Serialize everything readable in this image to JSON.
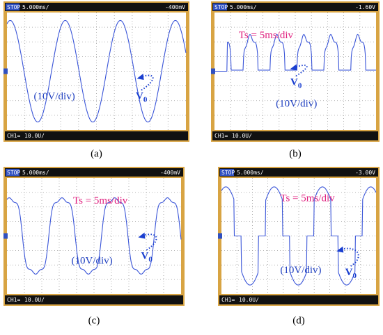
{
  "panels": [
    {
      "label": "(a)",
      "status": "STOP",
      "timebase": "5.000ms/",
      "trigger": "-400mV",
      "channel": "CH1=",
      "scale": "10.0U/",
      "voltscale": "(10V/div)",
      "output": "V",
      "output_sub": "0"
    },
    {
      "label": "(b)",
      "status": "STOP",
      "timebase": "5.000ms/",
      "trigger": "-1.60V",
      "channel": "CH1=",
      "scale": "10.0U/",
      "timescale": "Ts = 5ms/div",
      "voltscale": "(10V/div)",
      "output": "V",
      "output_sub": "0"
    },
    {
      "label": "(c)",
      "status": "STOP",
      "timebase": "5.000ms/",
      "trigger": "-400mV",
      "channel": "CH1=",
      "scale": "10.0U/",
      "timescale": "Ts = 5ms/div",
      "voltscale": "(10V/div)",
      "output": "V",
      "output_sub": "0"
    },
    {
      "label": "(d)",
      "status": "STOP",
      "timebase": "5.000ms/",
      "trigger": "-3.00V",
      "channel": "CH1=",
      "scale": "10.0U/",
      "timescale": "Ts = 5ms/div",
      "voltscale": "(10V/div)",
      "output": "V",
      "output_sub": "0"
    }
  ]
}
